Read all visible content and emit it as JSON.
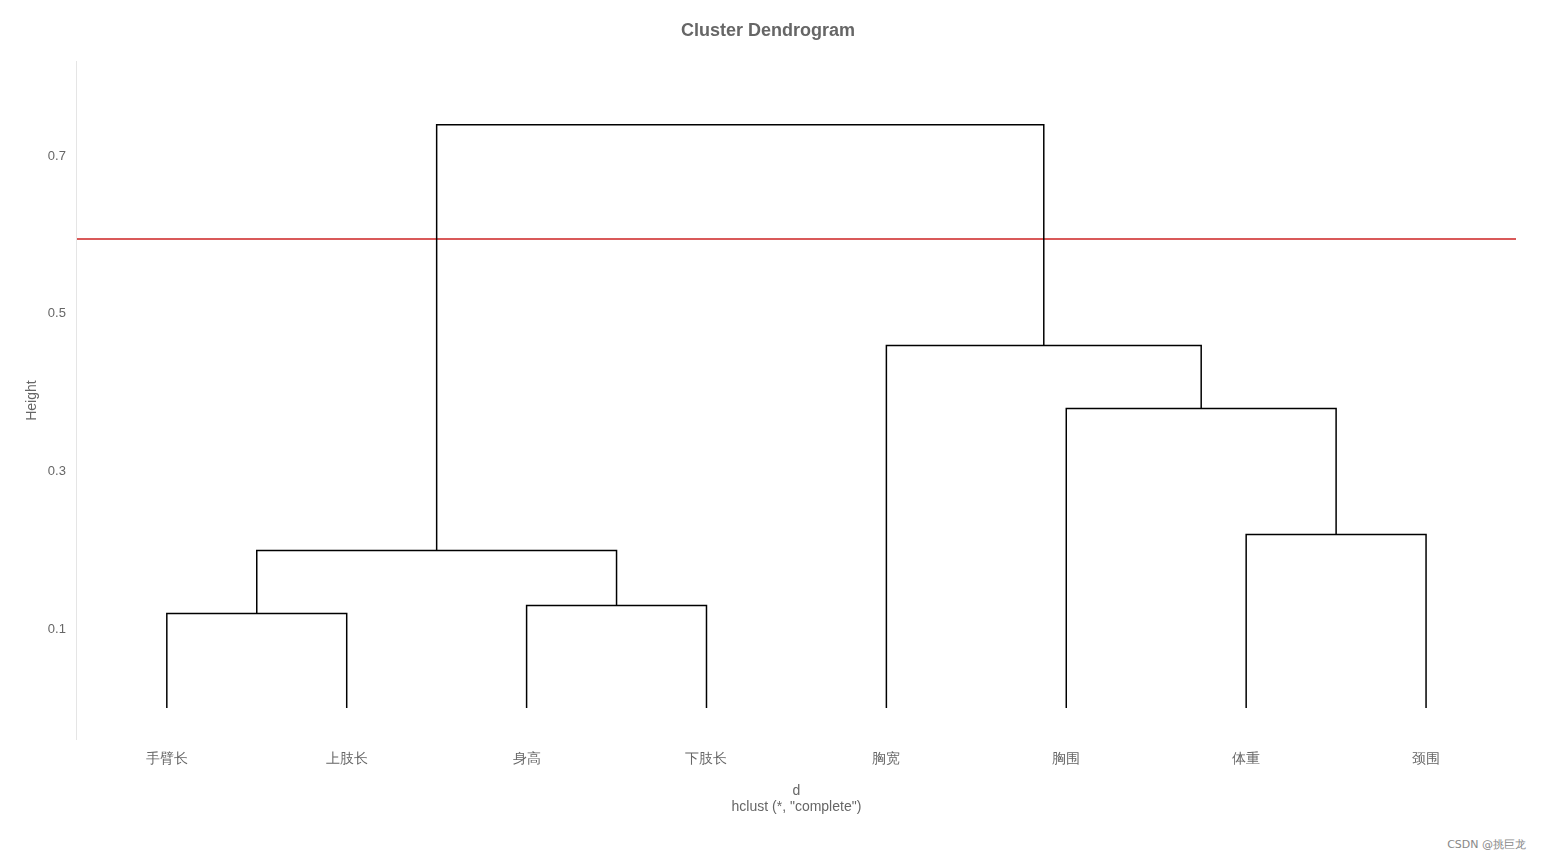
{
  "chart_data": {
    "type": "dendrogram",
    "title": "Cluster Dendrogram",
    "xlabel": [
      "d",
      "hclust (*, \"complete\")"
    ],
    "ylabel": "Height",
    "categories": [
      "手臂长",
      "上肢长",
      "身高",
      "下肢长",
      "胸宽",
      "胸围",
      "体重",
      "颈围"
    ],
    "merge": [
      [
        -1,
        -2
      ],
      [
        -3,
        -4
      ],
      [
        1,
        2
      ],
      [
        -7,
        -8
      ],
      [
        -6,
        4
      ],
      [
        -5,
        5
      ],
      [
        3,
        6
      ]
    ],
    "height": [
      0.12,
      0.13,
      0.2,
      0.22,
      0.38,
      0.46,
      0.74
    ],
    "color": "#000000",
    "cut_line": {
      "y": 0.595,
      "color": "#cc2222"
    },
    "ylim": [
      -0.04,
      0.82
    ],
    "yticks": [
      0.1,
      0.3,
      0.5,
      0.7
    ],
    "grid": false,
    "annotations": [
      {
        "text": "CSDN @挑巨龙"
      }
    ]
  }
}
